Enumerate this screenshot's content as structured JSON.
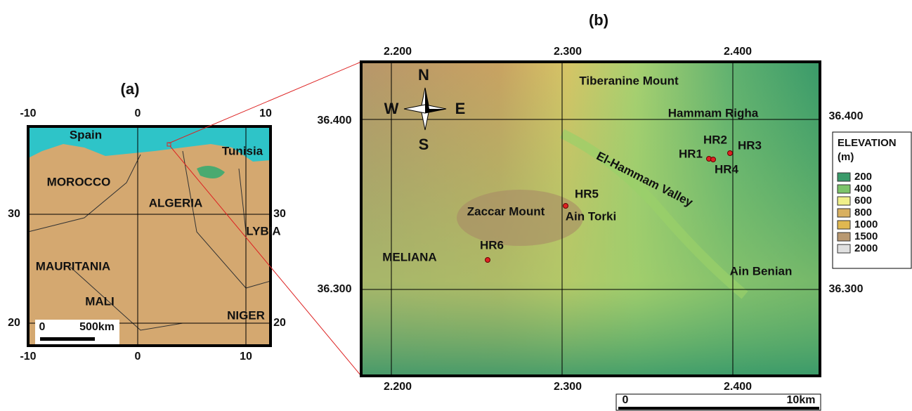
{
  "panel_a": {
    "label": "(a)",
    "top_ticks": [
      "-10",
      "0",
      "10"
    ],
    "bottom_ticks": [
      "-10",
      "0",
      "10"
    ],
    "left_ticks": [
      "30",
      "20"
    ],
    "right_ticks": [
      "30",
      "20"
    ],
    "places": [
      "Spain",
      "Tunisia",
      "MOROCCO",
      "ALGERIA",
      "LYBIA",
      "MAURITANIA",
      "MALI",
      "NIGER"
    ],
    "scale": {
      "start": "0",
      "end": "500km"
    }
  },
  "panel_b": {
    "label": "(b)",
    "top_ticks": [
      "2.200",
      "2.300",
      "2.400"
    ],
    "bottom_ticks": [
      "2.200",
      "2.300",
      "2.400"
    ],
    "left_ticks": [
      "36.400",
      "36.300"
    ],
    "right_ticks": [
      "36.400",
      "36.300"
    ],
    "compass": {
      "north": "N",
      "south": "S",
      "west": "W",
      "east": "E"
    },
    "stations": [
      "HR1",
      "HR2",
      "HR3",
      "HR4",
      "HR5",
      "HR6"
    ],
    "places": [
      "Tiberanine Mount",
      "Hammam Righa",
      "El-Hammam Valley",
      "Zaccar Mount",
      "Ain Torki",
      "MELIANA",
      "Ain Benian"
    ],
    "scale": {
      "start": "0",
      "end": "10km"
    }
  },
  "legend": {
    "title": "ELEVATION",
    "unit": "(m)",
    "items": [
      {
        "label": "200",
        "color": "#3a9a6a"
      },
      {
        "label": "400",
        "color": "#7cc46a"
      },
      {
        "label": "600",
        "color": "#f0f08a"
      },
      {
        "label": "800",
        "color": "#d8b060"
      },
      {
        "label": "1000",
        "color": "#e0b850"
      },
      {
        "label": "1500",
        "color": "#b89870"
      },
      {
        "label": "2000",
        "color": "#e0e0e0"
      }
    ]
  }
}
